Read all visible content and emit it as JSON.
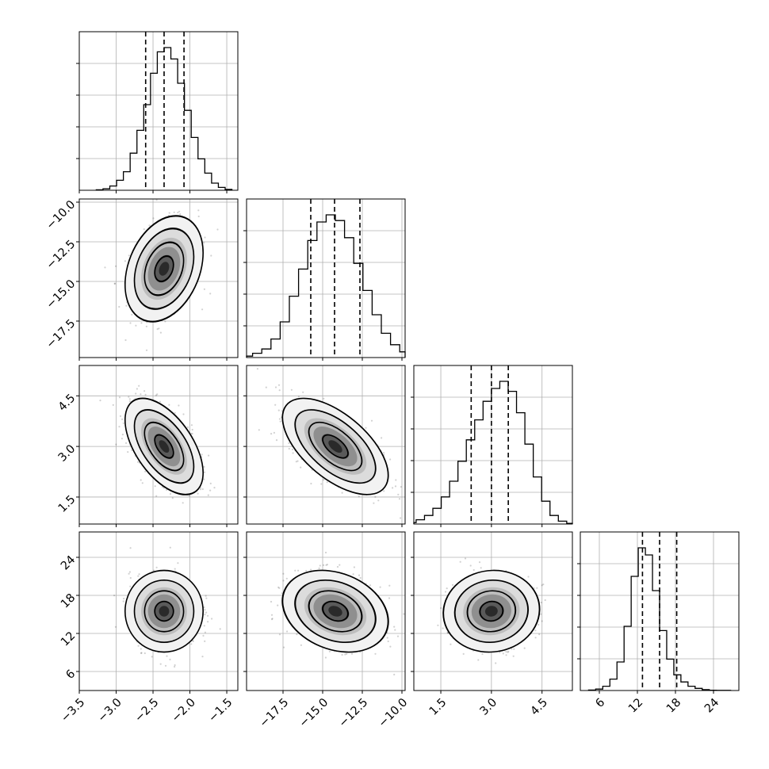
{
  "chart_data": {
    "type": "corner",
    "grid": true,
    "parameters": [
      {
        "mean": -2.35,
        "std": 0.23,
        "range": [
          -3.5,
          -1.35
        ],
        "ticks": [
          -3.5,
          -3.0,
          -2.5,
          -2.0,
          -1.5
        ],
        "tick_labels": [
          "−3.5",
          "−3.0",
          "−2.5",
          "−2.0",
          "−1.5"
        ],
        "quantiles": [
          -2.6,
          -2.35,
          -2.08
        ]
      },
      {
        "mean": -14.2,
        "std": 1.45,
        "range": [
          -19.8,
          -9.8
        ],
        "ticks": [
          -17.5,
          -15.0,
          -12.5,
          -10.0
        ],
        "tick_labels": [
          "−17.5",
          "−15.0",
          "−12.5",
          "−10.0"
        ],
        "quantiles": [
          -15.75,
          -14.25,
          -12.65
        ]
      },
      {
        "mean": 3.0,
        "std": 0.62,
        "range": [
          0.7,
          5.4
        ],
        "ticks": [
          1.5,
          3.0,
          4.5
        ],
        "tick_labels": [
          "1.5",
          "3.0",
          "4.5"
        ],
        "quantiles": [
          2.4,
          3.0,
          3.5
        ]
      },
      {
        "mean": 15.5,
        "std": 2.8,
        "range": [
          3.0,
          28.0
        ],
        "ticks": [
          6,
          12,
          18,
          24
        ],
        "tick_labels": [
          "6",
          "12",
          "18",
          "24"
        ],
        "quantiles": [
          12.8,
          15.5,
          18.2
        ]
      }
    ],
    "correlations": {
      "1-0": 0.3,
      "2-0": -0.55,
      "2-1": -0.6,
      "3-0": 0.0,
      "3-1": -0.25,
      "3-2": 0.05
    },
    "histograms": [
      [
        0.003,
        0.01,
        0.03,
        0.07,
        0.13,
        0.26,
        0.42,
        0.6,
        0.82,
        0.97,
        1.0,
        0.92,
        0.75,
        0.56,
        0.37,
        0.22,
        0.12,
        0.05,
        0.02,
        0.006
      ],
      [
        0.01,
        0.03,
        0.06,
        0.13,
        0.25,
        0.43,
        0.62,
        0.82,
        0.95,
        1.0,
        0.96,
        0.84,
        0.66,
        0.47,
        0.3,
        0.17,
        0.09,
        0.04,
        0.02,
        0.01
      ],
      [
        0.01,
        0.03,
        0.06,
        0.11,
        0.19,
        0.3,
        0.44,
        0.59,
        0.73,
        0.86,
        0.95,
        1.0,
        0.93,
        0.78,
        0.56,
        0.33,
        0.16,
        0.06,
        0.02,
        0.005
      ],
      [
        0.003,
        0.01,
        0.03,
        0.08,
        0.2,
        0.45,
        0.8,
        1.0,
        0.95,
        0.7,
        0.42,
        0.22,
        0.11,
        0.06,
        0.03,
        0.015,
        0.006,
        0.002,
        0.001,
        0.001
      ]
    ]
  }
}
